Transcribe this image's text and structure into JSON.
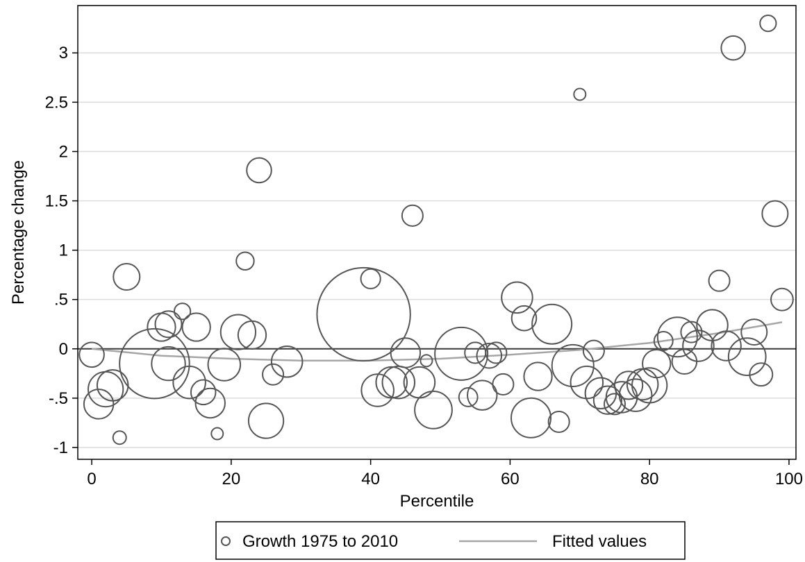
{
  "chart_data": {
    "type": "scatter",
    "xlabel": "Percentile",
    "ylabel": "Percentage change",
    "xlim": [
      -2,
      101
    ],
    "ylim": [
      -1.12,
      3.48
    ],
    "x_ticks": [
      0,
      20,
      40,
      60,
      80,
      100
    ],
    "x_tick_labels": [
      "0",
      "20",
      "40",
      "60",
      "80",
      "100"
    ],
    "y_ticks": [
      -1,
      -0.5,
      0,
      0.5,
      1,
      1.5,
      2,
      2.5,
      3
    ],
    "y_tick_labels": [
      "-1",
      "-.5",
      "0",
      ".5",
      "1",
      "1.5",
      "2",
      "2.5",
      "3"
    ],
    "grid": "horizontal",
    "reference_line_y": 0,
    "legend_position": "bottom",
    "marker_color": "#555555",
    "fit_color": "#a6a6a6",
    "series": [
      {
        "name": "Growth 1975 to 2010",
        "kind": "weighted-scatter",
        "points": [
          {
            "x": 0,
            "y": -0.06,
            "w": 3.5
          },
          {
            "x": 1,
            "y": -0.56,
            "w": 5
          },
          {
            "x": 2,
            "y": -0.41,
            "w": 7
          },
          {
            "x": 3,
            "y": -0.37,
            "w": 5.5
          },
          {
            "x": 4,
            "y": -0.9,
            "w": 1
          },
          {
            "x": 5,
            "y": 0.73,
            "w": 4
          },
          {
            "x": 9,
            "y": -0.15,
            "w": 28
          },
          {
            "x": 10,
            "y": 0.22,
            "w": 4.5
          },
          {
            "x": 11,
            "y": 0.25,
            "w": 4
          },
          {
            "x": 11,
            "y": -0.15,
            "w": 6.5
          },
          {
            "x": 13,
            "y": 0.38,
            "w": 1.5
          },
          {
            "x": 14,
            "y": -0.34,
            "w": 6
          },
          {
            "x": 15,
            "y": 0.22,
            "w": 4.5
          },
          {
            "x": 16,
            "y": -0.44,
            "w": 3.5
          },
          {
            "x": 17,
            "y": -0.55,
            "w": 5
          },
          {
            "x": 18,
            "y": -0.86,
            "w": 0.8
          },
          {
            "x": 19,
            "y": -0.16,
            "w": 6
          },
          {
            "x": 21,
            "y": 0.17,
            "w": 7
          },
          {
            "x": 22,
            "y": 0.89,
            "w": 1.8
          },
          {
            "x": 23,
            "y": 0.14,
            "w": 4.5
          },
          {
            "x": 24,
            "y": 1.81,
            "w": 3.5
          },
          {
            "x": 25,
            "y": -0.73,
            "w": 7
          },
          {
            "x": 26,
            "y": -0.26,
            "w": 2.5
          },
          {
            "x": 28,
            "y": -0.13,
            "w": 5.5
          },
          {
            "x": 39,
            "y": 0.35,
            "w": 50
          },
          {
            "x": 40,
            "y": 0.71,
            "w": 2.2
          },
          {
            "x": 41,
            "y": -0.42,
            "w": 6
          },
          {
            "x": 43,
            "y": -0.34,
            "w": 5.5
          },
          {
            "x": 44,
            "y": -0.34,
            "w": 6
          },
          {
            "x": 45,
            "y": -0.04,
            "w": 5
          },
          {
            "x": 46,
            "y": 1.35,
            "w": 2.5
          },
          {
            "x": 47,
            "y": -0.34,
            "w": 5.5
          },
          {
            "x": 48,
            "y": -0.12,
            "w": 0.8
          },
          {
            "x": 49,
            "y": -0.62,
            "w": 8
          },
          {
            "x": 53,
            "y": -0.05,
            "w": 16
          },
          {
            "x": 54,
            "y": -0.49,
            "w": 2
          },
          {
            "x": 55,
            "y": -0.04,
            "w": 2.5
          },
          {
            "x": 56,
            "y": -0.47,
            "w": 5
          },
          {
            "x": 57,
            "y": -0.07,
            "w": 3.5
          },
          {
            "x": 58,
            "y": -0.04,
            "w": 2.5
          },
          {
            "x": 59,
            "y": -0.36,
            "w": 2.5
          },
          {
            "x": 61,
            "y": 0.52,
            "w": 5.5
          },
          {
            "x": 62,
            "y": 0.31,
            "w": 3.5
          },
          {
            "x": 63,
            "y": -0.7,
            "w": 9
          },
          {
            "x": 64,
            "y": -0.28,
            "w": 4.5
          },
          {
            "x": 66,
            "y": 0.25,
            "w": 9
          },
          {
            "x": 67,
            "y": -0.74,
            "w": 2.5
          },
          {
            "x": 69,
            "y": -0.17,
            "w": 10
          },
          {
            "x": 70,
            "y": 2.58,
            "w": 0.8
          },
          {
            "x": 71,
            "y": -0.34,
            "w": 6
          },
          {
            "x": 72,
            "y": -0.02,
            "w": 2.5
          },
          {
            "x": 73,
            "y": -0.45,
            "w": 5.5
          },
          {
            "x": 74,
            "y": -0.52,
            "w": 4.5
          },
          {
            "x": 75,
            "y": -0.56,
            "w": 2.5
          },
          {
            "x": 76,
            "y": -0.49,
            "w": 5.5
          },
          {
            "x": 77,
            "y": -0.37,
            "w": 4.5
          },
          {
            "x": 78,
            "y": -0.47,
            "w": 6
          },
          {
            "x": 79,
            "y": -0.36,
            "w": 5.5
          },
          {
            "x": 80,
            "y": -0.37,
            "w": 7
          },
          {
            "x": 81,
            "y": -0.15,
            "w": 4.5
          },
          {
            "x": 82,
            "y": 0.08,
            "w": 2
          },
          {
            "x": 84,
            "y": 0.12,
            "w": 9
          },
          {
            "x": 85,
            "y": -0.13,
            "w": 3.5
          },
          {
            "x": 86,
            "y": 0.17,
            "w": 2.5
          },
          {
            "x": 87,
            "y": 0.03,
            "w": 5.5
          },
          {
            "x": 89,
            "y": 0.24,
            "w": 5.5
          },
          {
            "x": 90,
            "y": 0.69,
            "w": 2.5
          },
          {
            "x": 91,
            "y": 0.03,
            "w": 5
          },
          {
            "x": 92,
            "y": 3.05,
            "w": 3.3
          },
          {
            "x": 94,
            "y": -0.08,
            "w": 8
          },
          {
            "x": 95,
            "y": 0.17,
            "w": 3.8
          },
          {
            "x": 96,
            "y": -0.26,
            "w": 3
          },
          {
            "x": 97,
            "y": 3.3,
            "w": 1.5
          },
          {
            "x": 98,
            "y": 1.37,
            "w": 3.8
          },
          {
            "x": 99,
            "y": 0.5,
            "w": 2.8
          }
        ]
      },
      {
        "name": "Fitted values",
        "kind": "line",
        "x": [
          0,
          10,
          20,
          30,
          40,
          50,
          60,
          70,
          80,
          90,
          99
        ],
        "y": [
          0.0,
          -0.07,
          -0.1,
          -0.12,
          -0.12,
          -0.1,
          -0.06,
          -0.01,
          0.06,
          0.16,
          0.27
        ]
      }
    ],
    "legend": {
      "items": [
        {
          "label": "Growth 1975 to 2010",
          "symbol": "hollow-circle"
        },
        {
          "label": "Fitted values",
          "symbol": "line"
        }
      ]
    }
  }
}
